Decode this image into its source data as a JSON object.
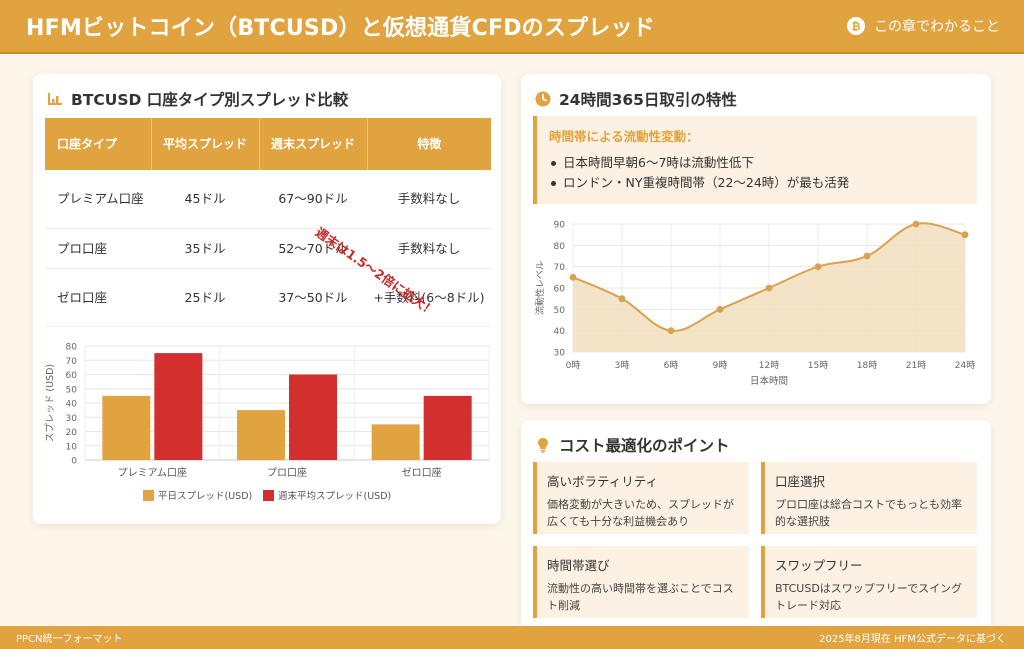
{
  "header": {
    "title": "HFMビットコイン（BTCUSD）と仮想通貨CFDのスプレッド",
    "right_label": "この章でわかること",
    "btc_symbol": "₿"
  },
  "spread_card": {
    "title": "BTCUSD 口座タイプ別スプレッド比較",
    "icon": "bar-chart-icon",
    "table": {
      "headers": [
        "口座タイプ",
        "平均スプレッド",
        "週末スプレッド",
        "特徴"
      ],
      "rows": [
        [
          "プレミアム口座",
          "45ドル",
          "67〜90ドル",
          "手数料なし"
        ],
        [
          "プロ口座",
          "35ドル",
          "52〜70ドル",
          "手数料なし"
        ],
        [
          "ゼロ口座",
          "25ドル",
          "37〜50ドル",
          "+手数料(6〜8ドル)"
        ]
      ]
    },
    "stamp": "週末は1.5〜2倍に拡大！"
  },
  "liquidity_card": {
    "title": "24時間365日取引の特性",
    "icon": "clock-icon",
    "info_head": "時間帯による流動性変動：",
    "info_items": [
      "日本時間早朝6〜7時は流動性低下",
      "ロンドン・NY重複時間帯（22〜24時）が最も活発"
    ]
  },
  "cost_card": {
    "title": "コスト最適化のポイント",
    "icon": "lightbulb-icon",
    "points": [
      {
        "title": "高いボラティリティ",
        "desc": "価格変動が大きいため、スプレッドが広くても十分な利益機会あり"
      },
      {
        "title": "口座選択",
        "desc": "プロ口座は総合コストでもっとも効率的な選択肢"
      },
      {
        "title": "時間帯選び",
        "desc": "流動性の高い時間帯を選ぶことでコスト削減"
      },
      {
        "title": "スワップフリー",
        "desc": "BTCUSDはスワップフリーでスイングトレード対応"
      }
    ]
  },
  "footer": {
    "left": "PPCN統一フォーマット",
    "right": "2025年8月現在 HFM公式データに基づく"
  },
  "colors": {
    "accent": "#e1a33f",
    "weekday_bar": "#e1a33f",
    "weekend_bar": "#d32f2f",
    "line": "#d9a250",
    "area": "#f1dfbd"
  },
  "chart_data": [
    {
      "type": "bar",
      "categories": [
        "プレミアム口座",
        "プロ口座",
        "ゼロ口座"
      ],
      "series": [
        {
          "name": "平日スプレッド(USD)",
          "values": [
            45,
            35,
            25
          ]
        },
        {
          "name": "週末平均スプレッド(USD)",
          "values": [
            75,
            60,
            45
          ]
        }
      ],
      "xlabel": "",
      "ylabel": "スプレッド (USD)",
      "ylim": [
        0,
        80
      ],
      "yticks": [
        0,
        10,
        20,
        30,
        40,
        50,
        60,
        70,
        80
      ],
      "grid": true,
      "legend": "bottom"
    },
    {
      "type": "area",
      "x": [
        "0時",
        "3時",
        "6時",
        "9時",
        "12時",
        "15時",
        "18時",
        "21時",
        "24時"
      ],
      "values": [
        65,
        55,
        40,
        50,
        60,
        70,
        75,
        90,
        85
      ],
      "xlabel": "日本時間",
      "ylabel": "流動性レベル",
      "ylim": [
        30,
        90
      ],
      "yticks": [
        30,
        40,
        50,
        60,
        70,
        80,
        90
      ],
      "grid": true
    }
  ]
}
